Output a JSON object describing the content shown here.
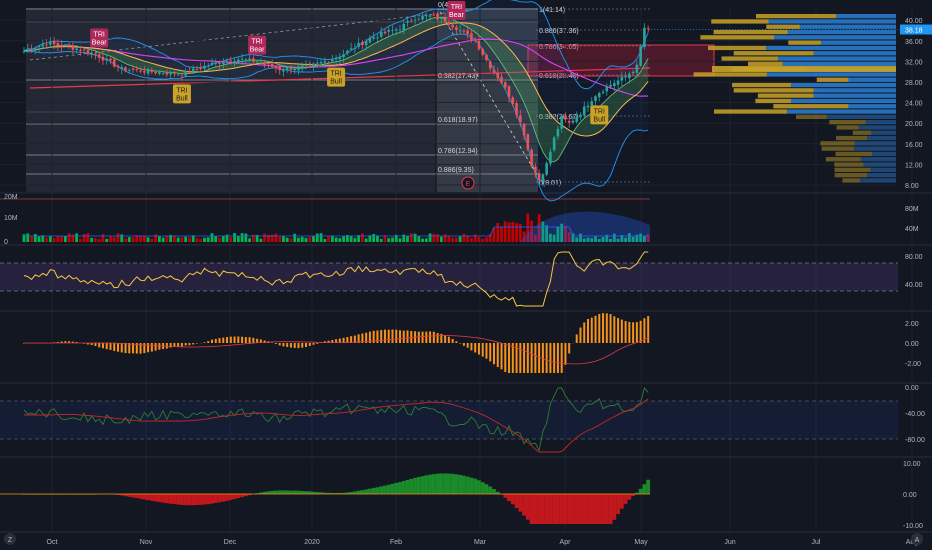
{
  "chart_data": {
    "type": "candlestick",
    "x_ticks": [
      "Oct",
      "Nov",
      "Dec",
      "2020",
      "Feb",
      "Mar",
      "Apr",
      "May",
      "Jun",
      "Jul",
      "Aug"
    ],
    "price_axis_ticks": [
      "40.00",
      "36.00",
      "32.00",
      "28.00",
      "24.00",
      "20.00",
      "16.00",
      "12.00",
      "8.00"
    ],
    "last_price": "38.18",
    "fib_levels": [
      {
        "label": "0(41.14)",
        "value": 41.14
      },
      {
        "label": "0.382(27.43)",
        "value": 27.43
      },
      {
        "label": "0.618(18.97)",
        "value": 18.97
      },
      {
        "label": "0.786(12.94)",
        "value": 12.94
      },
      {
        "label": "0.886(9.35)",
        "value": 9.35
      }
    ],
    "fib_levels_right": [
      {
        "label": "1(41.14)",
        "value": 41.14
      },
      {
        "label": "0.886(37.36)",
        "value": 37.36
      },
      {
        "label": "0.786(34.05)",
        "value": 34.05
      },
      {
        "label": "0.618(28.48)",
        "value": 28.48
      },
      {
        "label": "0.382(20.67)",
        "value": 20.67
      },
      {
        "label": "0(8.01)",
        "value": 8.01
      }
    ],
    "annotations": [
      {
        "text": [
          "TRI",
          "Bear"
        ],
        "type": "bear",
        "date_index": 20
      },
      {
        "text": [
          "TRI",
          "Bear"
        ],
        "type": "bear",
        "date_index": 62
      },
      {
        "text": [
          "TRI",
          "Bull"
        ],
        "type": "bull",
        "date_index": 42
      },
      {
        "text": [
          "TRI",
          "Bull"
        ],
        "type": "bull",
        "date_index": 83
      },
      {
        "text": [
          "TRI",
          "Bear"
        ],
        "type": "bear",
        "date_index": 115
      },
      {
        "text": [
          "TRI",
          "Bull"
        ],
        "type": "bull",
        "date_index": 153
      }
    ],
    "earnings_marker": "E",
    "volume_axis_ticks_left": [
      "20M",
      "10M",
      "0"
    ],
    "volume_axis_ticks_right": [
      "80M",
      "40M"
    ],
    "rsi_axis_ticks": [
      "80.00",
      "40.00"
    ],
    "macd_axis_ticks": [
      "2.00",
      "0.00",
      "-2.00"
    ],
    "willr_axis_ticks": [
      "0.00",
      "-40.00",
      "-80.00"
    ],
    "osc_axis_ticks": [
      "10.00",
      "0.00",
      "-10.00"
    ],
    "price_anchors": [
      [
        0,
        34
      ],
      [
        6,
        35.5
      ],
      [
        14,
        34.5
      ],
      [
        20,
        33
      ],
      [
        26,
        30.5
      ],
      [
        34,
        30
      ],
      [
        42,
        29.5
      ],
      [
        50,
        31.5
      ],
      [
        56,
        32.5
      ],
      [
        62,
        32
      ],
      [
        68,
        30.5
      ],
      [
        76,
        31
      ],
      [
        84,
        33
      ],
      [
        92,
        36.5
      ],
      [
        100,
        38.5
      ],
      [
        104,
        40.5
      ],
      [
        108,
        40.8
      ],
      [
        112,
        40
      ],
      [
        116,
        38
      ],
      [
        120,
        36
      ],
      [
        124,
        31
      ],
      [
        127,
        28
      ],
      [
        130,
        24
      ],
      [
        133,
        18
      ],
      [
        135,
        12
      ],
      [
        137,
        9
      ],
      [
        139,
        12
      ],
      [
        141,
        17
      ],
      [
        143,
        21
      ],
      [
        145,
        20
      ],
      [
        148,
        22
      ],
      [
        152,
        25.5
      ],
      [
        156,
        27.5
      ],
      [
        160,
        29
      ],
      [
        163,
        31
      ],
      [
        165,
        38.5
      ],
      [
        166,
        38
      ]
    ]
  },
  "colors": {
    "bg": "#131722",
    "up": "#26a69a",
    "down": "#ef5350",
    "vol_up": "#00c853",
    "vol_down": "#d50000",
    "accent_yellow": "#f5c842",
    "macd_hist": "#f7931a",
    "vp_blue": "#2a7fd6",
    "vp_yellow": "#c9a227",
    "fib_zone": "#b71c3c"
  },
  "badge_z": "Z",
  "badge_a": "A"
}
